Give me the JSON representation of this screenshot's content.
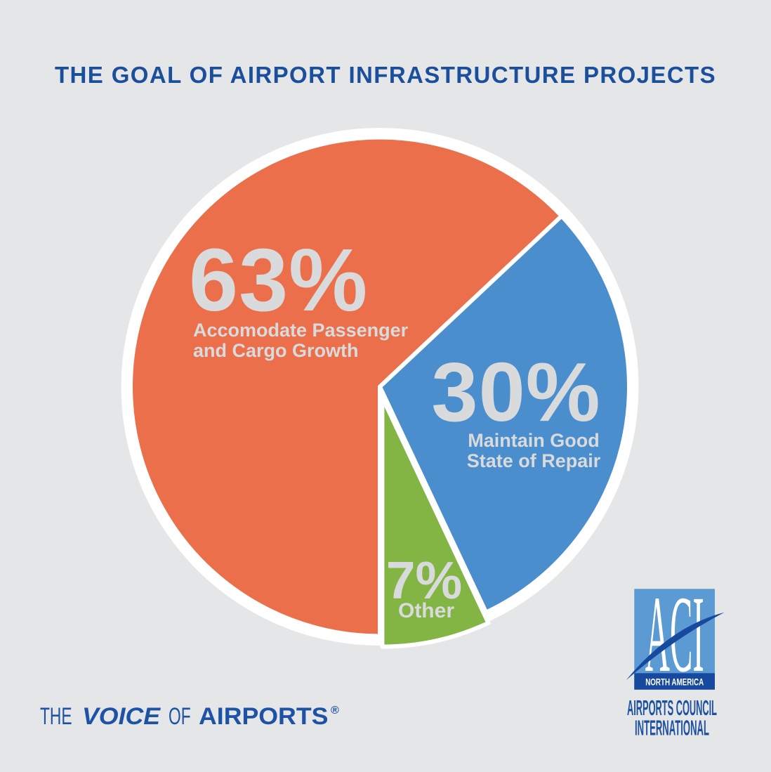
{
  "background_color": "#e5e6e8",
  "title": {
    "text": "THE GOAL OF AIRPORT INFRASTRUCTURE PROJECTS",
    "color": "#1b4e9b"
  },
  "chart_data": {
    "type": "pie",
    "title": "THE GOAL OF AIRPORT INFRASTRUCTURE PROJECTS",
    "unit": "percent",
    "start_angle_deg": 90,
    "direction": "clockwise",
    "legend_position": "labels-on-slices",
    "label_text_color": "#d9dadb",
    "ring_color": "#ffffff",
    "slices": [
      {
        "label": "Accomodate Passenger and Cargo Growth",
        "label_lines": [
          "Accomodate Passenger",
          "and Cargo Growth"
        ],
        "value": 63,
        "percent_label": "63%",
        "color": "#ec6f4b",
        "exploded": false
      },
      {
        "label": "Maintain Good State of Repair",
        "label_lines": [
          "Maintain Good",
          "State of Repair"
        ],
        "value": 30,
        "percent_label": "30%",
        "color": "#4a8ecd",
        "exploded": false
      },
      {
        "label": "Other",
        "label_lines": [
          "Other"
        ],
        "value": 7,
        "percent_label": "7%",
        "color": "#83b544",
        "exploded": true
      }
    ]
  },
  "footer": {
    "color": "#1e52a5",
    "tagline": {
      "word1": "THE",
      "word2": "VOICE",
      "word3": "OF",
      "word4": "AIRPORTS",
      "registered_mark": "®"
    }
  },
  "logo": {
    "acronym": "ACI",
    "region": "NORTH AMERICA",
    "org_line1": "AIRPORTS COUNCIL",
    "org_line2": "INTERNATIONAL",
    "light_blue": "#5b9ad3",
    "dark_blue": "#17499e",
    "text_blue": "#1d509f"
  }
}
